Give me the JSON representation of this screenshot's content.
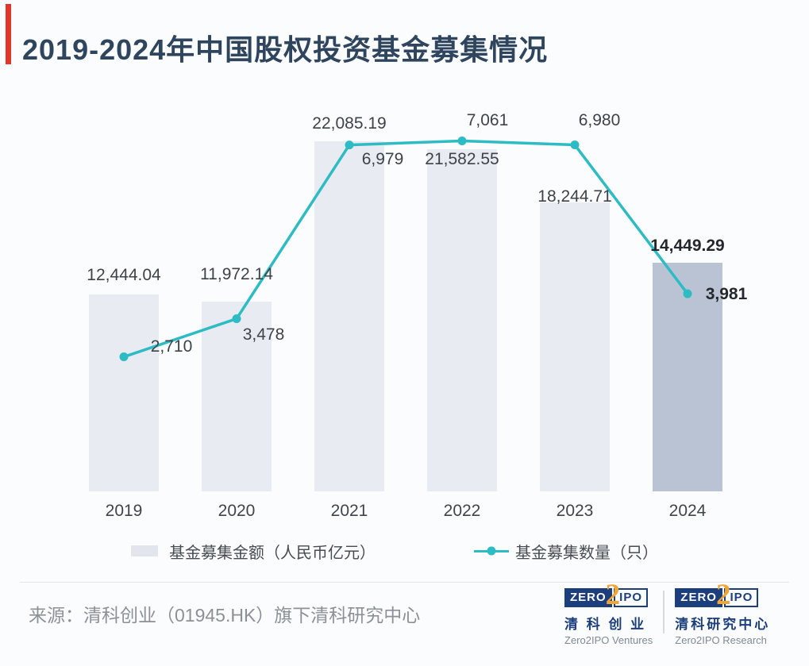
{
  "chart_data": {
    "type": "bar",
    "title": "2019-2024年中国股权投资基金募集情况",
    "categories": [
      "2019",
      "2020",
      "2021",
      "2022",
      "2023",
      "2024"
    ],
    "series": [
      {
        "name": "基金募集金额（人民币亿元）",
        "type": "bar",
        "values": [
          12444.04,
          11972.14,
          22085.19,
          21582.55,
          18244.71,
          14449.29
        ],
        "labels": [
          "12,444.04",
          "11,972.14",
          "22,085.19",
          "21,582.55",
          "18,244.71",
          "14,449.29"
        ]
      },
      {
        "name": "基金募集数量（只）",
        "type": "line",
        "values": [
          2710,
          3478,
          6979,
          7061,
          6980,
          3981
        ],
        "labels": [
          "2,710",
          "3,478",
          "6,979",
          "7,061",
          "6,980",
          "3,981"
        ]
      }
    ],
    "highlight_index": 5,
    "bar_axis_max": 24000,
    "line_axis_max": 7660,
    "grid": false,
    "legend_position": "bottom",
    "colors": {
      "bar": "#e9ebf2",
      "bar_highlight": "#b9c3d3",
      "line": "#2dbcc3",
      "label": "#3e4349",
      "label_bold": "#24282d",
      "title": "#2f455e",
      "accent": "#e23529"
    }
  },
  "footer": {
    "source": "来源：清科创业（01945.HK）旗下清科研究中心",
    "logos": [
      {
        "zero": "ZERO",
        "two": "2",
        "ipo": "IPO",
        "cn": "清 科 创 业",
        "en": "Zero2IPO Ventures"
      },
      {
        "zero": "ZERO",
        "two": "2",
        "ipo": "IPO",
        "cn": "清科研究中心",
        "en": "Zero2IPO Research"
      }
    ]
  }
}
